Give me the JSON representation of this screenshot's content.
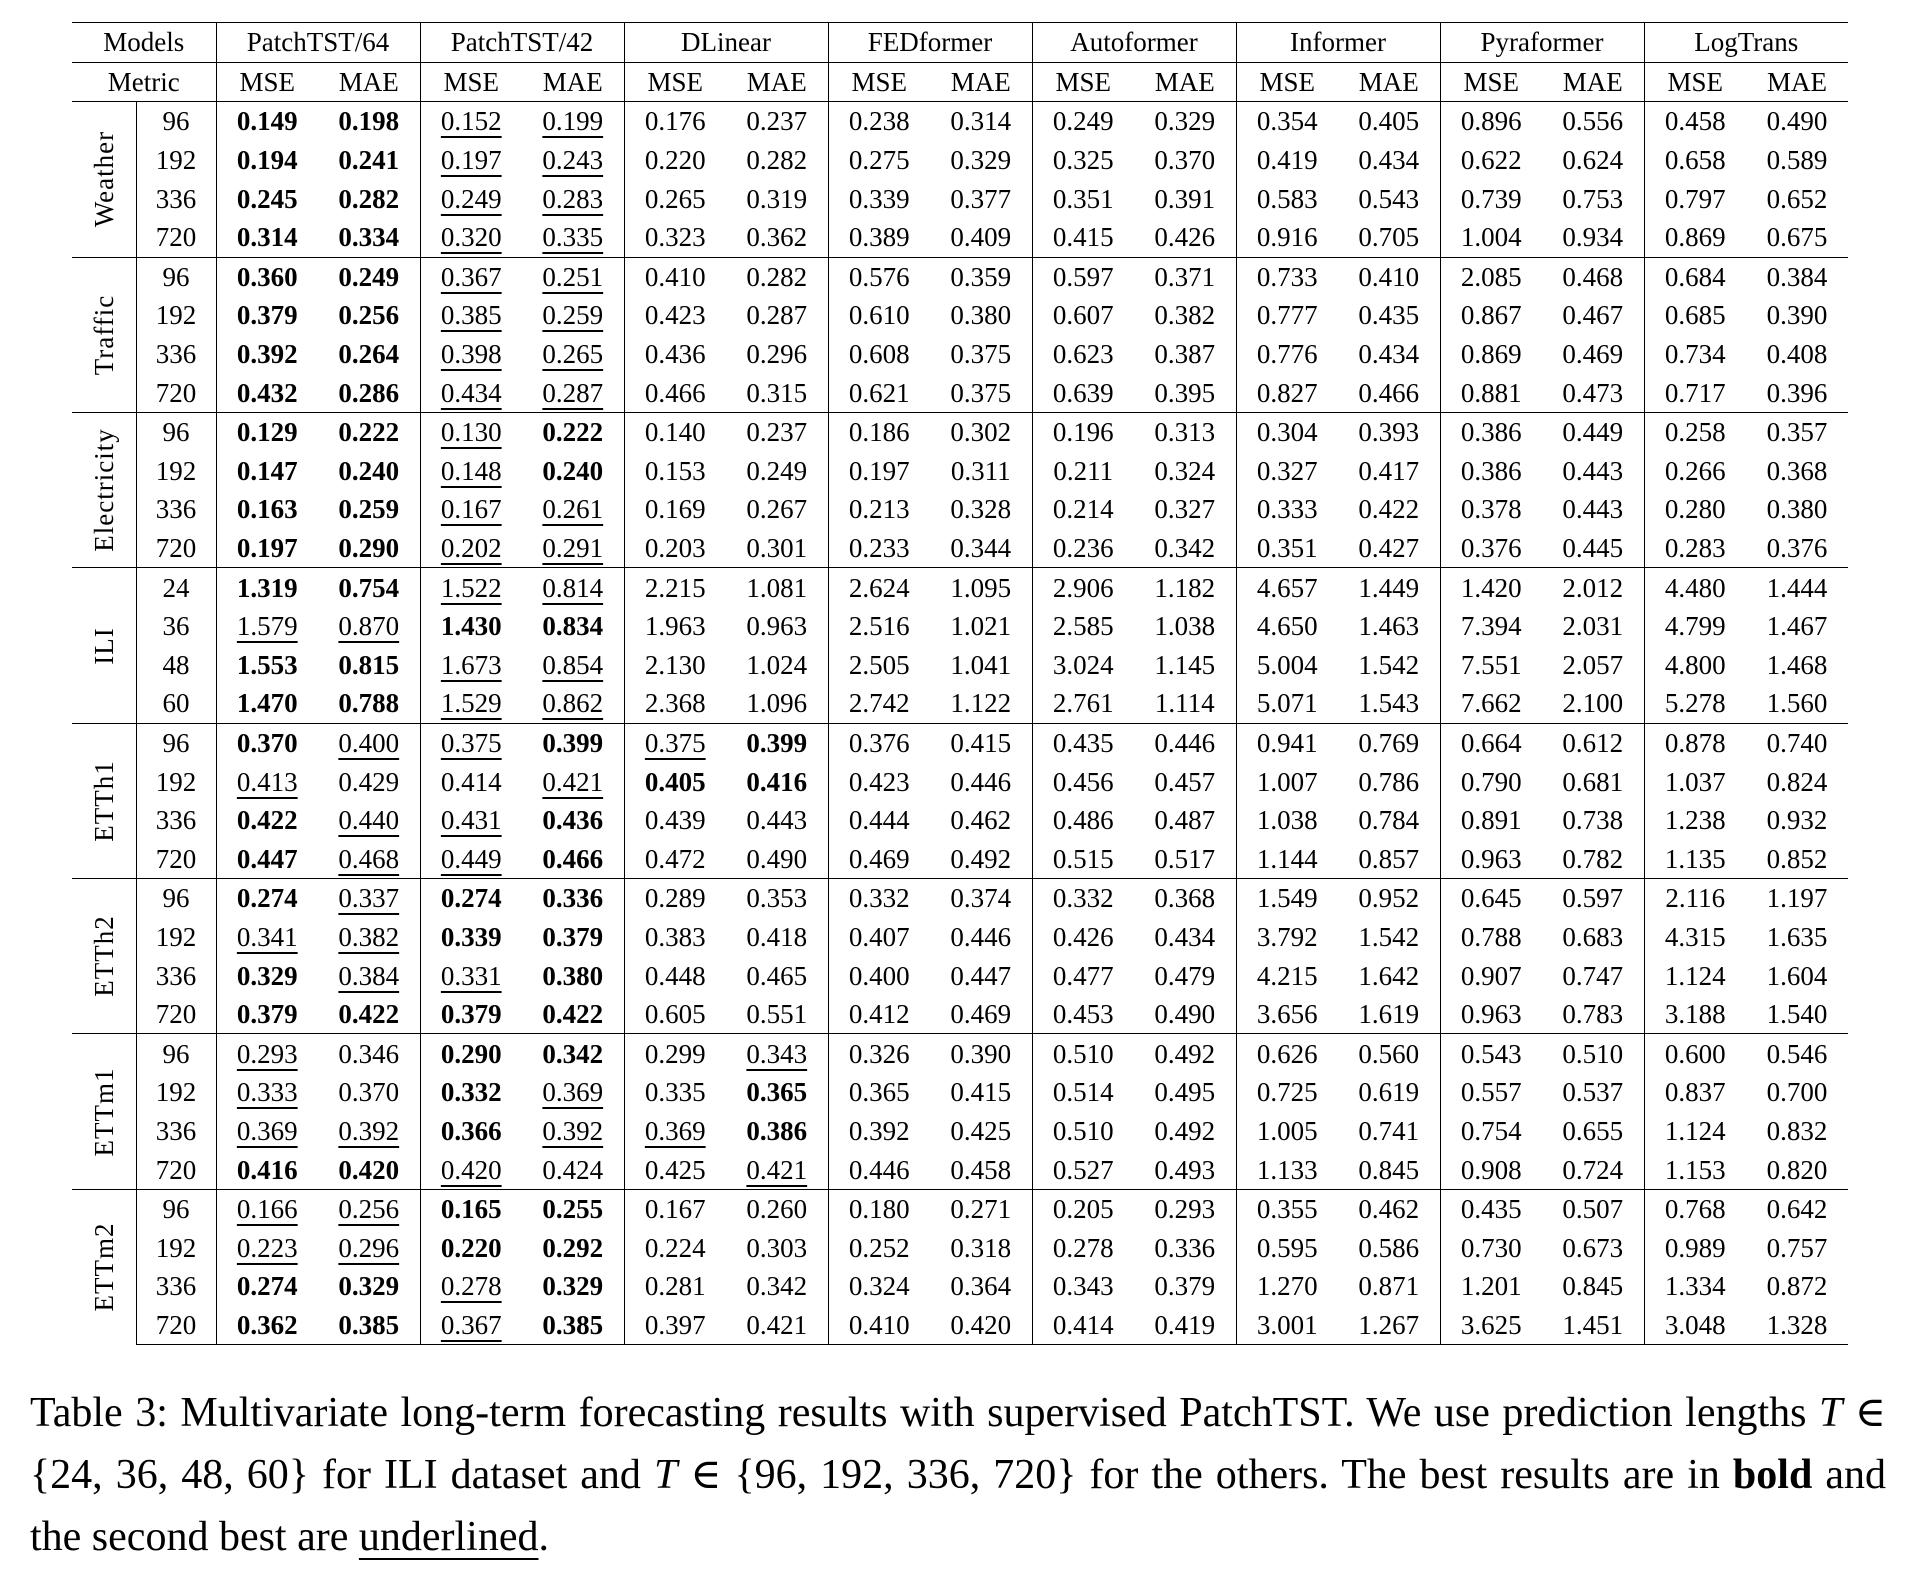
{
  "table": {
    "models_label": "Models",
    "metric_label": "Metric",
    "models": [
      "PatchTST/64",
      "PatchTST/42",
      "DLinear",
      "FEDformer",
      "Autoformer",
      "Informer",
      "Pyraformer",
      "LogTrans"
    ],
    "metrics": [
      "MSE",
      "MAE"
    ],
    "style_legend": {
      "b": "bold (best)",
      "u": "underlined (second best)"
    },
    "datasets": [
      {
        "name": "Weather",
        "rows": [
          {
            "h": "96",
            "v": [
              "0.149",
              "0.198",
              "0.152",
              "0.199",
              "0.176",
              "0.237",
              "0.238",
              "0.314",
              "0.249",
              "0.329",
              "0.354",
              "0.405",
              "0.896",
              "0.556",
              "0.458",
              "0.490"
            ],
            "s": [
              "b",
              "b",
              "u",
              "u"
            ]
          },
          {
            "h": "192",
            "v": [
              "0.194",
              "0.241",
              "0.197",
              "0.243",
              "0.220",
              "0.282",
              "0.275",
              "0.329",
              "0.325",
              "0.370",
              "0.419",
              "0.434",
              "0.622",
              "0.624",
              "0.658",
              "0.589"
            ],
            "s": [
              "b",
              "b",
              "u",
              "u"
            ]
          },
          {
            "h": "336",
            "v": [
              "0.245",
              "0.282",
              "0.249",
              "0.283",
              "0.265",
              "0.319",
              "0.339",
              "0.377",
              "0.351",
              "0.391",
              "0.583",
              "0.543",
              "0.739",
              "0.753",
              "0.797",
              "0.652"
            ],
            "s": [
              "b",
              "b",
              "u",
              "u"
            ]
          },
          {
            "h": "720",
            "v": [
              "0.314",
              "0.334",
              "0.320",
              "0.335",
              "0.323",
              "0.362",
              "0.389",
              "0.409",
              "0.415",
              "0.426",
              "0.916",
              "0.705",
              "1.004",
              "0.934",
              "0.869",
              "0.675"
            ],
            "s": [
              "b",
              "b",
              "u",
              "u"
            ]
          }
        ]
      },
      {
        "name": "Traffic",
        "rows": [
          {
            "h": "96",
            "v": [
              "0.360",
              "0.249",
              "0.367",
              "0.251",
              "0.410",
              "0.282",
              "0.576",
              "0.359",
              "0.597",
              "0.371",
              "0.733",
              "0.410",
              "2.085",
              "0.468",
              "0.684",
              "0.384"
            ],
            "s": [
              "b",
              "b",
              "u",
              "u"
            ]
          },
          {
            "h": "192",
            "v": [
              "0.379",
              "0.256",
              "0.385",
              "0.259",
              "0.423",
              "0.287",
              "0.610",
              "0.380",
              "0.607",
              "0.382",
              "0.777",
              "0.435",
              "0.867",
              "0.467",
              "0.685",
              "0.390"
            ],
            "s": [
              "b",
              "b",
              "u",
              "u"
            ]
          },
          {
            "h": "336",
            "v": [
              "0.392",
              "0.264",
              "0.398",
              "0.265",
              "0.436",
              "0.296",
              "0.608",
              "0.375",
              "0.623",
              "0.387",
              "0.776",
              "0.434",
              "0.869",
              "0.469",
              "0.734",
              "0.408"
            ],
            "s": [
              "b",
              "b",
              "u",
              "u"
            ]
          },
          {
            "h": "720",
            "v": [
              "0.432",
              "0.286",
              "0.434",
              "0.287",
              "0.466",
              "0.315",
              "0.621",
              "0.375",
              "0.639",
              "0.395",
              "0.827",
              "0.466",
              "0.881",
              "0.473",
              "0.717",
              "0.396"
            ],
            "s": [
              "b",
              "b",
              "u",
              "u"
            ]
          }
        ]
      },
      {
        "name": "Electricity",
        "rows": [
          {
            "h": "96",
            "v": [
              "0.129",
              "0.222",
              "0.130",
              "0.222",
              "0.140",
              "0.237",
              "0.186",
              "0.302",
              "0.196",
              "0.313",
              "0.304",
              "0.393",
              "0.386",
              "0.449",
              "0.258",
              "0.357"
            ],
            "s": [
              "b",
              "b",
              "u",
              "b"
            ]
          },
          {
            "h": "192",
            "v": [
              "0.147",
              "0.240",
              "0.148",
              "0.240",
              "0.153",
              "0.249",
              "0.197",
              "0.311",
              "0.211",
              "0.324",
              "0.327",
              "0.417",
              "0.386",
              "0.443",
              "0.266",
              "0.368"
            ],
            "s": [
              "b",
              "b",
              "u",
              "b"
            ]
          },
          {
            "h": "336",
            "v": [
              "0.163",
              "0.259",
              "0.167",
              "0.261",
              "0.169",
              "0.267",
              "0.213",
              "0.328",
              "0.214",
              "0.327",
              "0.333",
              "0.422",
              "0.378",
              "0.443",
              "0.280",
              "0.380"
            ],
            "s": [
              "b",
              "b",
              "u",
              "u"
            ]
          },
          {
            "h": "720",
            "v": [
              "0.197",
              "0.290",
              "0.202",
              "0.291",
              "0.203",
              "0.301",
              "0.233",
              "0.344",
              "0.236",
              "0.342",
              "0.351",
              "0.427",
              "0.376",
              "0.445",
              "0.283",
              "0.376"
            ],
            "s": [
              "b",
              "b",
              "u",
              "u"
            ]
          }
        ]
      },
      {
        "name": "ILI",
        "rows": [
          {
            "h": "24",
            "v": [
              "1.319",
              "0.754",
              "1.522",
              "0.814",
              "2.215",
              "1.081",
              "2.624",
              "1.095",
              "2.906",
              "1.182",
              "4.657",
              "1.449",
              "1.420",
              "2.012",
              "4.480",
              "1.444"
            ],
            "s": [
              "b",
              "b",
              "u",
              "u"
            ]
          },
          {
            "h": "36",
            "v": [
              "1.579",
              "0.870",
              "1.430",
              "0.834",
              "1.963",
              "0.963",
              "2.516",
              "1.021",
              "2.585",
              "1.038",
              "4.650",
              "1.463",
              "7.394",
              "2.031",
              "4.799",
              "1.467"
            ],
            "s": [
              "u",
              "u",
              "b",
              "b"
            ]
          },
          {
            "h": "48",
            "v": [
              "1.553",
              "0.815",
              "1.673",
              "0.854",
              "2.130",
              "1.024",
              "2.505",
              "1.041",
              "3.024",
              "1.145",
              "5.004",
              "1.542",
              "7.551",
              "2.057",
              "4.800",
              "1.468"
            ],
            "s": [
              "b",
              "b",
              "u",
              "u"
            ]
          },
          {
            "h": "60",
            "v": [
              "1.470",
              "0.788",
              "1.529",
              "0.862",
              "2.368",
              "1.096",
              "2.742",
              "1.122",
              "2.761",
              "1.114",
              "5.071",
              "1.543",
              "7.662",
              "2.100",
              "5.278",
              "1.560"
            ],
            "s": [
              "b",
              "b",
              "u",
              "u"
            ]
          }
        ]
      },
      {
        "name": "ETTh1",
        "rows": [
          {
            "h": "96",
            "v": [
              "0.370",
              "0.400",
              "0.375",
              "0.399",
              "0.375",
              "0.399",
              "0.376",
              "0.415",
              "0.435",
              "0.446",
              "0.941",
              "0.769",
              "0.664",
              "0.612",
              "0.878",
              "0.740"
            ],
            "s": [
              "b",
              "u",
              "u",
              "b",
              "u",
              "b"
            ]
          },
          {
            "h": "192",
            "v": [
              "0.413",
              "0.429",
              "0.414",
              "0.421",
              "0.405",
              "0.416",
              "0.423",
              "0.446",
              "0.456",
              "0.457",
              "1.007",
              "0.786",
              "0.790",
              "0.681",
              "1.037",
              "0.824"
            ],
            "s": [
              "u",
              "",
              "",
              "u",
              "b",
              "b"
            ]
          },
          {
            "h": "336",
            "v": [
              "0.422",
              "0.440",
              "0.431",
              "0.436",
              "0.439",
              "0.443",
              "0.444",
              "0.462",
              "0.486",
              "0.487",
              "1.038",
              "0.784",
              "0.891",
              "0.738",
              "1.238",
              "0.932"
            ],
            "s": [
              "b",
              "u",
              "u",
              "b"
            ]
          },
          {
            "h": "720",
            "v": [
              "0.447",
              "0.468",
              "0.449",
              "0.466",
              "0.472",
              "0.490",
              "0.469",
              "0.492",
              "0.515",
              "0.517",
              "1.144",
              "0.857",
              "0.963",
              "0.782",
              "1.135",
              "0.852"
            ],
            "s": [
              "b",
              "u",
              "u",
              "b"
            ]
          }
        ]
      },
      {
        "name": "ETTh2",
        "rows": [
          {
            "h": "96",
            "v": [
              "0.274",
              "0.337",
              "0.274",
              "0.336",
              "0.289",
              "0.353",
              "0.332",
              "0.374",
              "0.332",
              "0.368",
              "1.549",
              "0.952",
              "0.645",
              "0.597",
              "2.116",
              "1.197"
            ],
            "s": [
              "b",
              "u",
              "b",
              "b"
            ]
          },
          {
            "h": "192",
            "v": [
              "0.341",
              "0.382",
              "0.339",
              "0.379",
              "0.383",
              "0.418",
              "0.407",
              "0.446",
              "0.426",
              "0.434",
              "3.792",
              "1.542",
              "0.788",
              "0.683",
              "4.315",
              "1.635"
            ],
            "s": [
              "u",
              "u",
              "b",
              "b"
            ]
          },
          {
            "h": "336",
            "v": [
              "0.329",
              "0.384",
              "0.331",
              "0.380",
              "0.448",
              "0.465",
              "0.400",
              "0.447",
              "0.477",
              "0.479",
              "4.215",
              "1.642",
              "0.907",
              "0.747",
              "1.124",
              "1.604"
            ],
            "s": [
              "b",
              "u",
              "u",
              "b"
            ]
          },
          {
            "h": "720",
            "v": [
              "0.379",
              "0.422",
              "0.379",
              "0.422",
              "0.605",
              "0.551",
              "0.412",
              "0.469",
              "0.453",
              "0.490",
              "3.656",
              "1.619",
              "0.963",
              "0.783",
              "3.188",
              "1.540"
            ],
            "s": [
              "b",
              "b",
              "b",
              "b"
            ]
          }
        ]
      },
      {
        "name": "ETTm1",
        "rows": [
          {
            "h": "96",
            "v": [
              "0.293",
              "0.346",
              "0.290",
              "0.342",
              "0.299",
              "0.343",
              "0.326",
              "0.390",
              "0.510",
              "0.492",
              "0.626",
              "0.560",
              "0.543",
              "0.510",
              "0.600",
              "0.546"
            ],
            "s": [
              "u",
              "",
              "b",
              "b",
              "",
              "u"
            ]
          },
          {
            "h": "192",
            "v": [
              "0.333",
              "0.370",
              "0.332",
              "0.369",
              "0.335",
              "0.365",
              "0.365",
              "0.415",
              "0.514",
              "0.495",
              "0.725",
              "0.619",
              "0.557",
              "0.537",
              "0.837",
              "0.700"
            ],
            "s": [
              "u",
              "",
              "b",
              "u",
              "",
              "b"
            ]
          },
          {
            "h": "336",
            "v": [
              "0.369",
              "0.392",
              "0.366",
              "0.392",
              "0.369",
              "0.386",
              "0.392",
              "0.425",
              "0.510",
              "0.492",
              "1.005",
              "0.741",
              "0.754",
              "0.655",
              "1.124",
              "0.832"
            ],
            "s": [
              "u",
              "u",
              "b",
              "u",
              "u",
              "b"
            ]
          },
          {
            "h": "720",
            "v": [
              "0.416",
              "0.420",
              "0.420",
              "0.424",
              "0.425",
              "0.421",
              "0.446",
              "0.458",
              "0.527",
              "0.493",
              "1.133",
              "0.845",
              "0.908",
              "0.724",
              "1.153",
              "0.820"
            ],
            "s": [
              "b",
              "b",
              "u",
              "",
              "",
              "u"
            ]
          }
        ]
      },
      {
        "name": "ETTm2",
        "rows": [
          {
            "h": "96",
            "v": [
              "0.166",
              "0.256",
              "0.165",
              "0.255",
              "0.167",
              "0.260",
              "0.180",
              "0.271",
              "0.205",
              "0.293",
              "0.355",
              "0.462",
              "0.435",
              "0.507",
              "0.768",
              "0.642"
            ],
            "s": [
              "u",
              "u",
              "b",
              "b"
            ]
          },
          {
            "h": "192",
            "v": [
              "0.223",
              "0.296",
              "0.220",
              "0.292",
              "0.224",
              "0.303",
              "0.252",
              "0.318",
              "0.278",
              "0.336",
              "0.595",
              "0.586",
              "0.730",
              "0.673",
              "0.989",
              "0.757"
            ],
            "s": [
              "u",
              "u",
              "b",
              "b"
            ]
          },
          {
            "h": "336",
            "v": [
              "0.274",
              "0.329",
              "0.278",
              "0.329",
              "0.281",
              "0.342",
              "0.324",
              "0.364",
              "0.343",
              "0.379",
              "1.270",
              "0.871",
              "1.201",
              "0.845",
              "1.334",
              "0.872"
            ],
            "s": [
              "b",
              "b",
              "u",
              "b"
            ]
          },
          {
            "h": "720",
            "v": [
              "0.362",
              "0.385",
              "0.367",
              "0.385",
              "0.397",
              "0.421",
              "0.410",
              "0.420",
              "0.414",
              "0.419",
              "3.001",
              "1.267",
              "3.625",
              "1.451",
              "3.048",
              "1.328"
            ],
            "s": [
              "b",
              "b",
              "u",
              "b"
            ]
          }
        ]
      }
    ]
  },
  "caption": {
    "p1": "Table 3: Multivariate long-term forecasting results with supervised PatchTST. We use prediction lengths ",
    "var1": "T",
    "p2": " ∈ {24, 36, 48, 60} for ILI dataset and ",
    "var2": "T",
    "p3": " ∈ {96, 192, 336, 720} for the others. The best results are in ",
    "bold_word": "bold",
    "p4": " and the second best are ",
    "underlined_word": "underlined",
    "p5": "."
  }
}
